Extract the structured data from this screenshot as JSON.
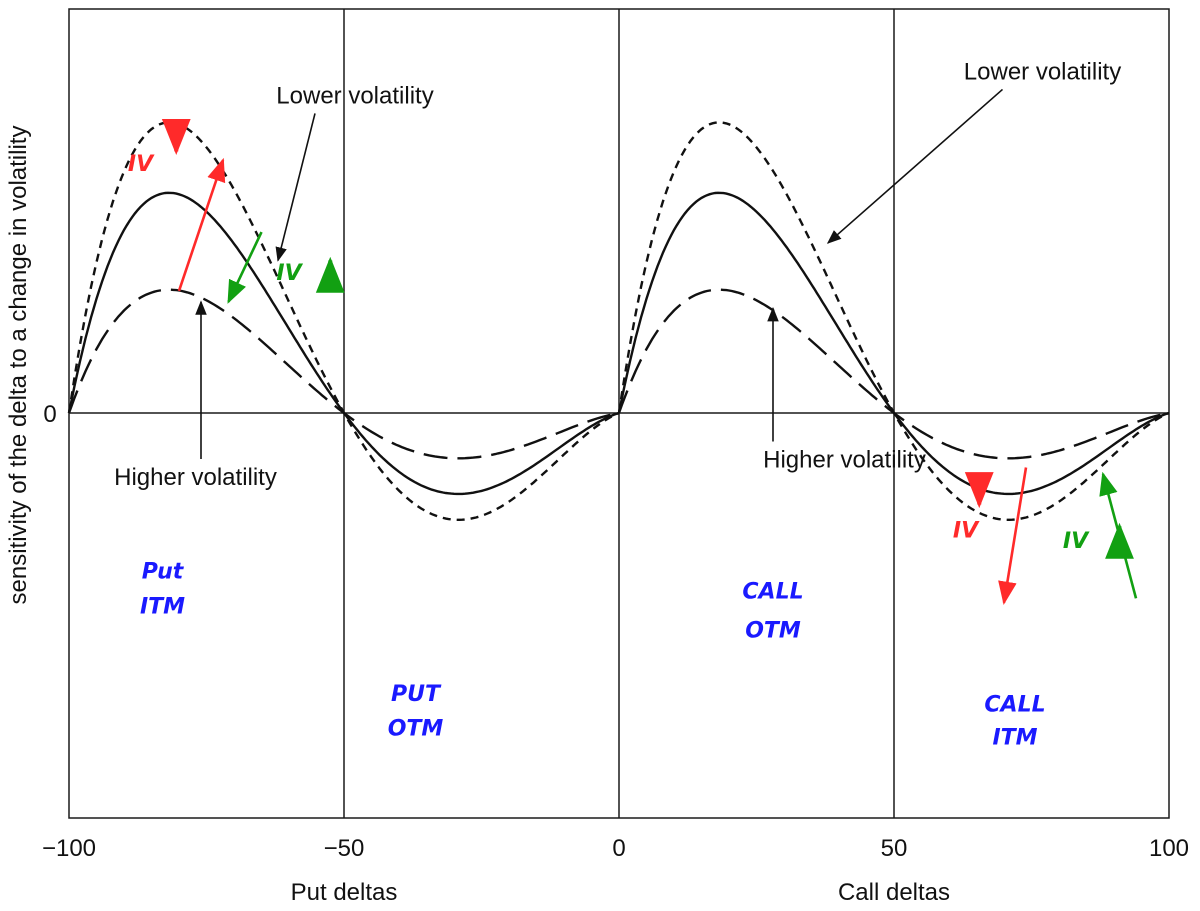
{
  "chart_data": {
    "type": "line",
    "title": "",
    "ylabel": "sensitivity of the delta to a change in volatility",
    "xlim": [
      -100,
      100
    ],
    "y_tick_label": "0",
    "x_ticks": [
      -100,
      -50,
      0,
      50,
      100
    ],
    "x_tick_labels": [
      "−100",
      "−50",
      "0",
      "50",
      "100"
    ],
    "x_group_labels": [
      {
        "text": "Put deltas",
        "x": -50
      },
      {
        "text": "Call deltas",
        "x": 50
      }
    ],
    "series": [
      {
        "style": "solid",
        "amplitude": 1.0,
        "peak_fraction": 0.16
      },
      {
        "style": "dotted",
        "amplitude": 1.32,
        "peak_fraction": 0.16
      },
      {
        "style": "dashed",
        "amplitude": 0.56,
        "peak_fraction": 0.16
      }
    ],
    "annotations": [
      {
        "text": "Lower volatility",
        "x": -48,
        "y": 1.42,
        "arrow_to": [
          -62,
          0.7
        ]
      },
      {
        "text": "Lower volatility",
        "x": 77,
        "y": 1.53,
        "arrow_to": [
          38,
          0.78
        ]
      },
      {
        "text": "Higher volatility",
        "x": -77,
        "y": -0.33,
        "arrow_to": [
          -76,
          0.51
        ]
      },
      {
        "text": "Higher volatility",
        "x": 41,
        "y": -0.25,
        "arrow_to": [
          28,
          0.48
        ]
      }
    ],
    "handwritten_notes": [
      {
        "text": "Put",
        "x": -83,
        "y": -0.76,
        "color": "#1a1aff"
      },
      {
        "text": "ITM",
        "x": -83,
        "y": -0.92,
        "color": "#1a1aff"
      },
      {
        "text": "PUT",
        "x": -37,
        "y": -1.32,
        "color": "#1a1aff"
      },
      {
        "text": "OTM",
        "x": -37,
        "y": -1.48,
        "color": "#1a1aff"
      },
      {
        "text": "CALL",
        "x": 28,
        "y": -0.85,
        "color": "#1a1aff"
      },
      {
        "text": "OTM",
        "x": 28,
        "y": -1.03,
        "color": "#1a1aff"
      },
      {
        "text": "CALL",
        "x": 72,
        "y": -1.37,
        "color": "#1a1aff"
      },
      {
        "text": "ITM",
        "x": 72,
        "y": -1.52,
        "color": "#1a1aff"
      },
      {
        "text": "IV",
        "x": -87,
        "y": 1.11,
        "color": "#ff2a2a"
      },
      {
        "text": "IV",
        "x": -60,
        "y": 0.61,
        "color": "#12a012"
      },
      {
        "text": "IV",
        "x": 63,
        "y": -0.57,
        "color": "#ff2a2a"
      },
      {
        "text": "IV",
        "x": 83,
        "y": -0.62,
        "color": "#12a012"
      }
    ],
    "hand_arrows": [
      {
        "color": "#ff2a2a",
        "from": [
          -80,
          0.56
        ],
        "to": [
          -72,
          1.16
        ]
      },
      {
        "color": "#12a012",
        "from": [
          -65,
          0.83
        ],
        "to": [
          -71,
          0.51
        ]
      },
      {
        "color": "#ff2a2a",
        "from": [
          74,
          -0.25
        ],
        "to": [
          70,
          -0.87
        ]
      },
      {
        "color": "#12a012",
        "from": [
          94,
          -0.85
        ],
        "to": [
          88,
          -0.28
        ]
      }
    ],
    "iv_marks": [
      {
        "color": "#ff2a2a",
        "direction": "down",
        "x": -80.5,
        "y": 1.2
      },
      {
        "color": "#12a012",
        "direction": "up",
        "x": -52.5,
        "y": 0.7
      },
      {
        "color": "#ff2a2a",
        "direction": "down",
        "x": 65.5,
        "y": -0.42
      },
      {
        "color": "#12a012",
        "direction": "up",
        "x": 91,
        "y": -0.52
      }
    ]
  }
}
